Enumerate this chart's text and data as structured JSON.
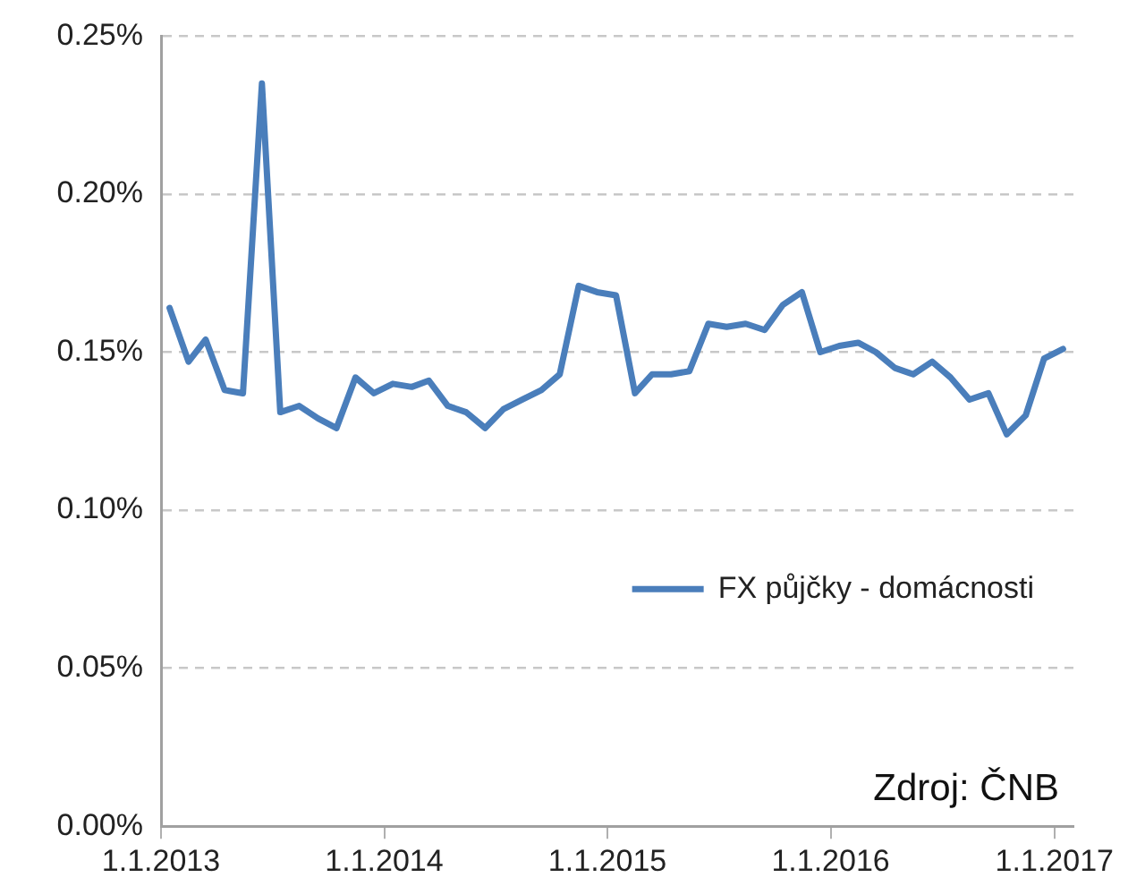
{
  "chart_data": {
    "type": "line",
    "x": [
      "2013-01-15",
      "2013-02-15",
      "2013-03-15",
      "2013-04-15",
      "2013-05-15",
      "2013-06-15",
      "2013-07-15",
      "2013-08-15",
      "2013-09-15",
      "2013-10-15",
      "2013-11-15",
      "2013-12-15",
      "2014-01-15",
      "2014-02-15",
      "2014-03-15",
      "2014-04-15",
      "2014-05-15",
      "2014-06-15",
      "2014-07-15",
      "2014-08-15",
      "2014-09-15",
      "2014-10-15",
      "2014-11-15",
      "2014-12-15",
      "2015-01-15",
      "2015-02-15",
      "2015-03-15",
      "2015-04-15",
      "2015-05-15",
      "2015-06-15",
      "2015-07-15",
      "2015-08-15",
      "2015-09-15",
      "2015-10-15",
      "2015-11-15",
      "2015-12-15",
      "2016-01-15",
      "2016-02-15",
      "2016-03-15",
      "2016-04-15",
      "2016-05-15",
      "2016-06-15",
      "2016-07-15",
      "2016-08-15",
      "2016-09-15",
      "2016-10-15",
      "2016-11-15",
      "2016-12-15",
      "2017-01-15"
    ],
    "series": [
      {
        "name": "FX půjčky - domácnosti",
        "color": "#4a7ebb",
        "values": [
          0.164,
          0.147,
          0.154,
          0.138,
          0.137,
          0.235,
          0.131,
          0.133,
          0.129,
          0.126,
          0.142,
          0.137,
          0.14,
          0.139,
          0.141,
          0.133,
          0.131,
          0.126,
          0.132,
          0.135,
          0.138,
          0.143,
          0.171,
          0.169,
          0.168,
          0.137,
          0.143,
          0.143,
          0.144,
          0.159,
          0.158,
          0.159,
          0.157,
          0.165,
          0.169,
          0.15,
          0.152,
          0.153,
          0.15,
          0.145,
          0.143,
          0.147,
          0.142,
          0.135,
          0.137,
          0.124,
          0.13,
          0.148,
          0.151
        ]
      }
    ],
    "xlim": [
      "2013-01-01",
      "2017-02-01"
    ],
    "xticks": [
      {
        "value": "2013-01-01",
        "label": "1.1.2013"
      },
      {
        "value": "2014-01-01",
        "label": "1.1.2014"
      },
      {
        "value": "2015-01-01",
        "label": "1.1.2015"
      },
      {
        "value": "2016-01-01",
        "label": "1.1.2016"
      },
      {
        "value": "2017-01-01",
        "label": "1.1.2017"
      }
    ],
    "ylim": [
      0,
      0.25
    ],
    "yticks": [
      {
        "value": 0,
        "label": "0.00%"
      },
      {
        "value": 0.05,
        "label": "0.05%"
      },
      {
        "value": 0.1,
        "label": "0.10%"
      },
      {
        "value": 0.15,
        "label": "0.15%"
      },
      {
        "value": 0.2,
        "label": "0.20%"
      },
      {
        "value": 0.25,
        "label": "0.25%"
      }
    ],
    "grid": "y",
    "legend": "right",
    "marker": "none",
    "line_style": "solid",
    "annotations": [
      "Zdroj: ČNB"
    ]
  }
}
